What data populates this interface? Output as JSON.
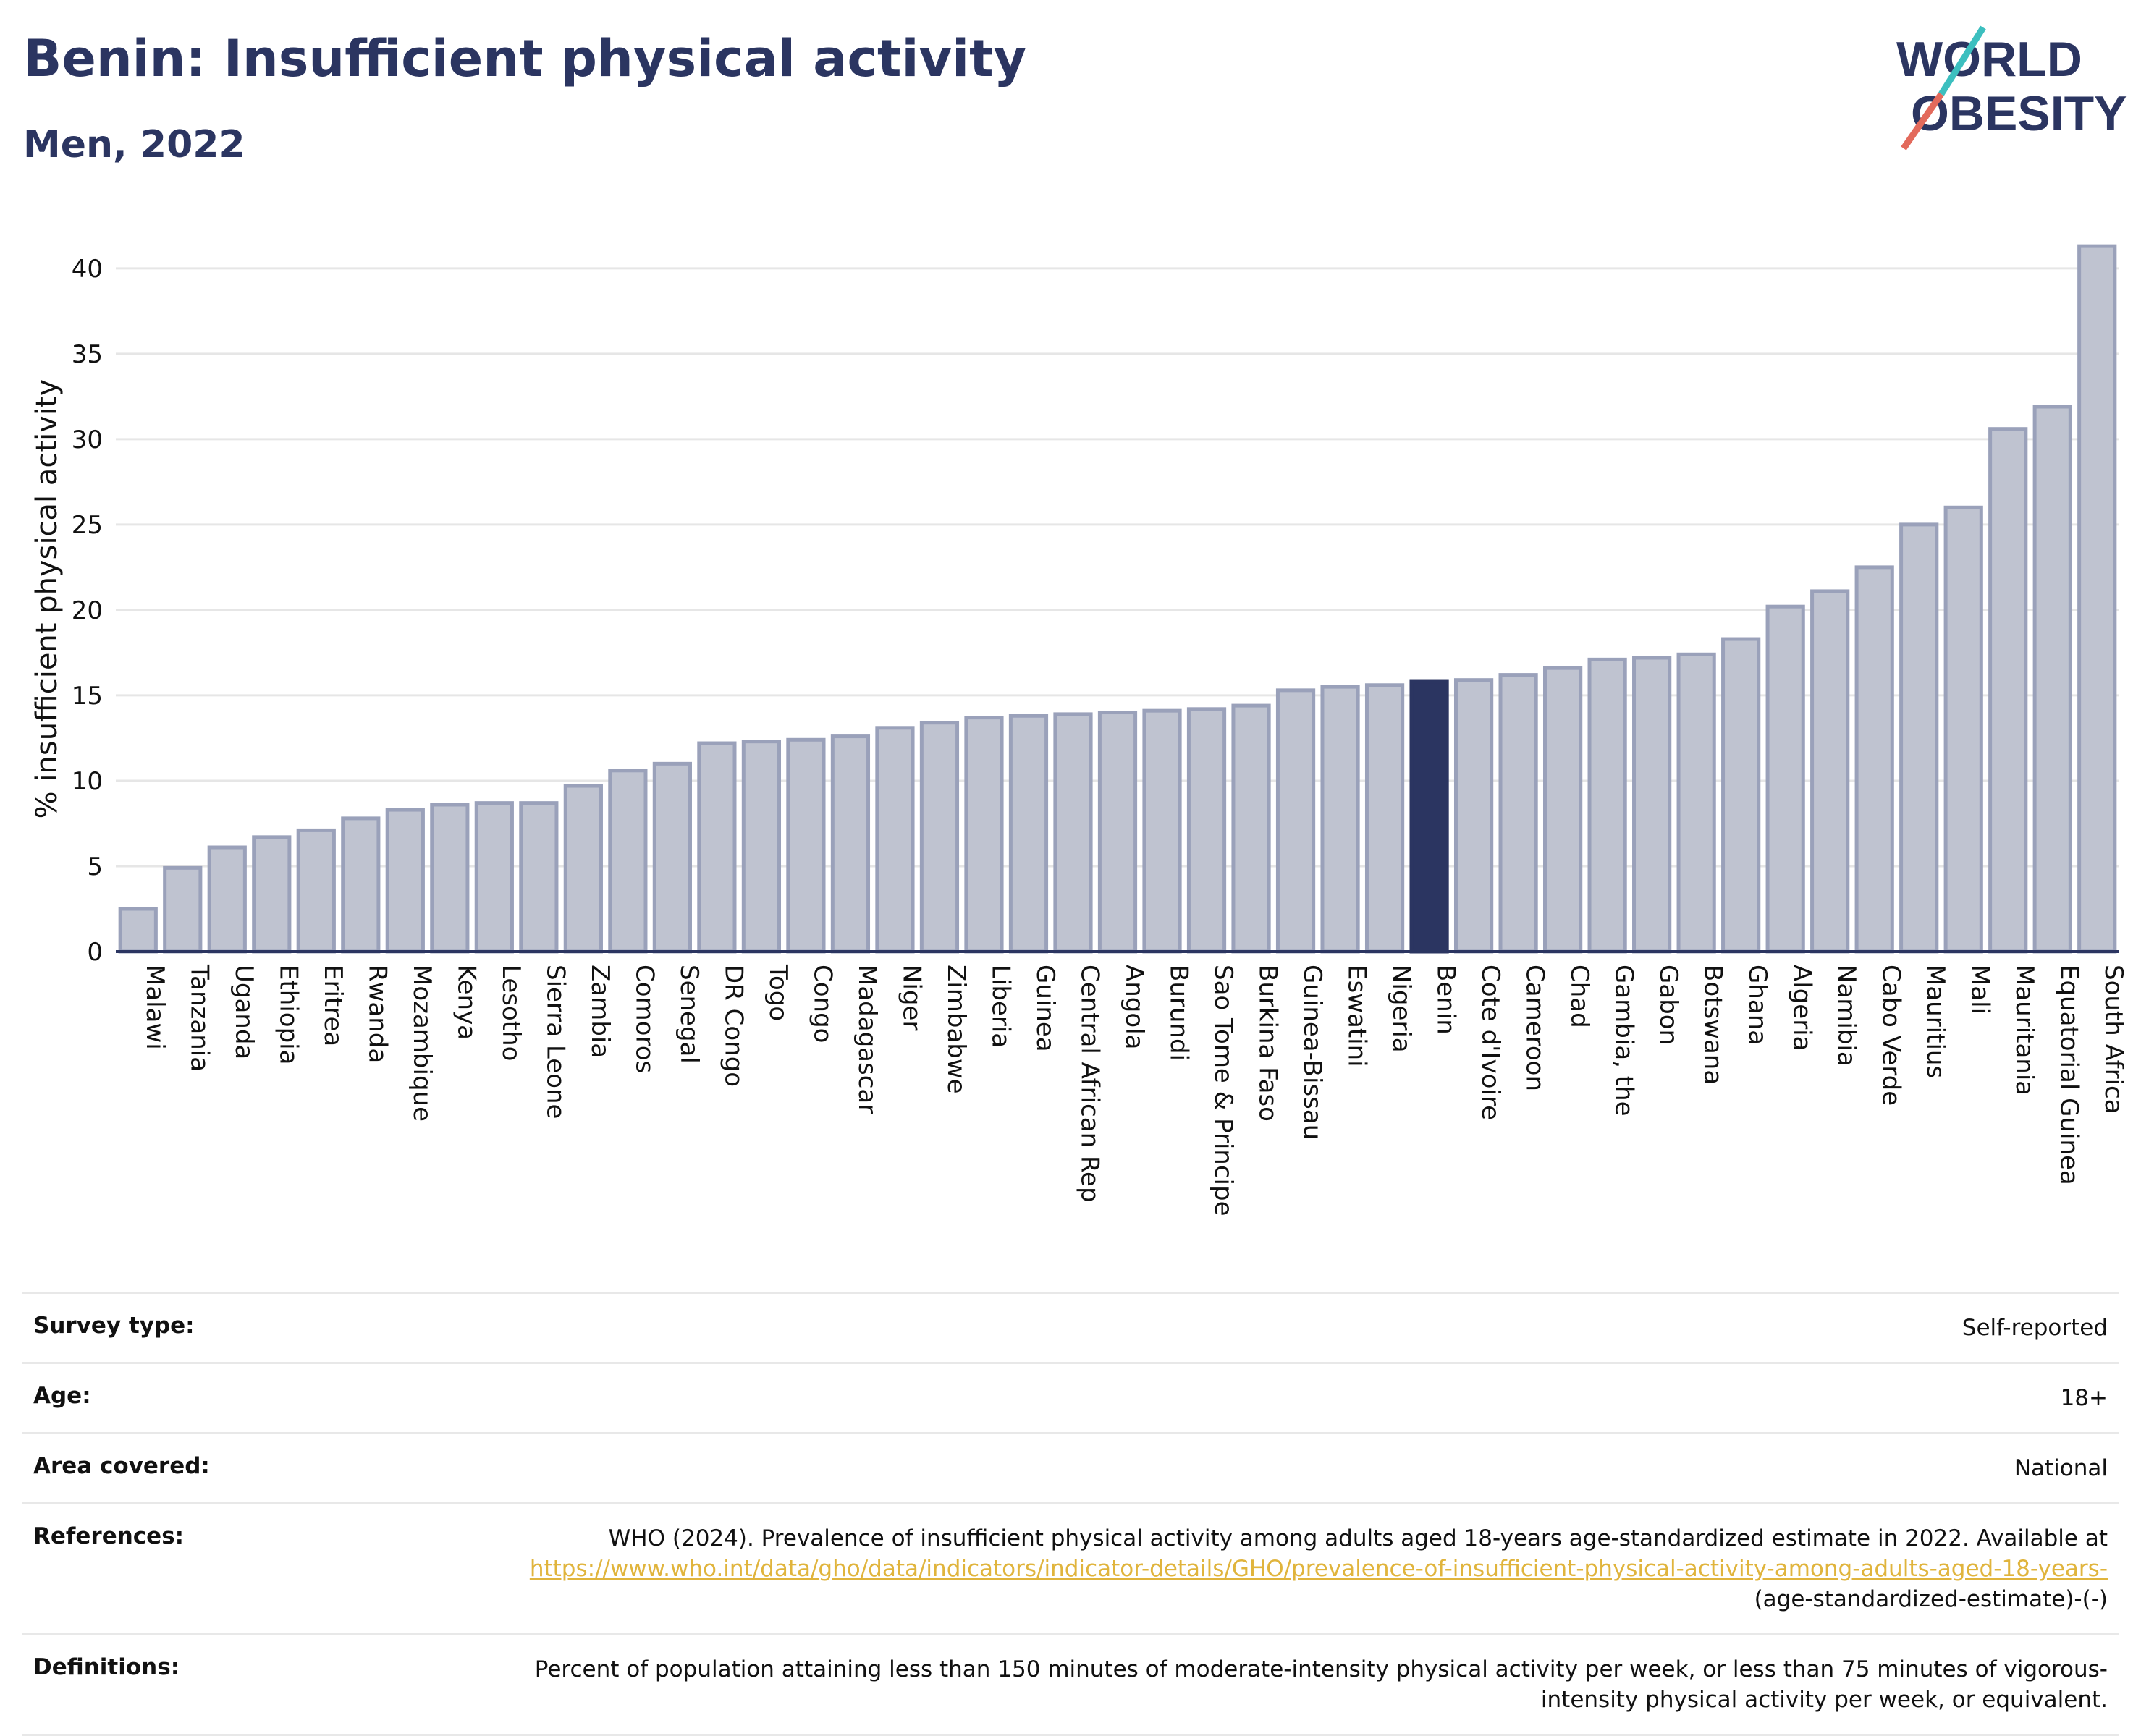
{
  "header": {
    "title": "Benin: Insufficient physical activity",
    "subtitle": "Men, 2022"
  },
  "logo": {
    "line1": "WORLD",
    "line2": "OBESITY"
  },
  "colors": {
    "title": "#2b3561",
    "bar": "#bfc3d0",
    "bar_border": "#9aa1ba",
    "highlight": "#2b3561",
    "link": "#e0b43c"
  },
  "chart_data": {
    "type": "bar",
    "ylabel": "% insufficient physical activity",
    "xlabel": "",
    "ylim": [
      0,
      43
    ],
    "yticks": [
      0,
      5,
      10,
      15,
      20,
      25,
      30,
      35,
      40
    ],
    "grid": true,
    "highlight": "Benin",
    "categories": [
      "Malawi",
      "Tanzania",
      "Uganda",
      "Ethiopia",
      "Eritrea",
      "Rwanda",
      "Mozambique",
      "Kenya",
      "Lesotho",
      "Sierra Leone",
      "Zambia",
      "Comoros",
      "Senegal",
      "DR Congo",
      "Togo",
      "Congo",
      "Madagascar",
      "Niger",
      "Zimbabwe",
      "Liberia",
      "Guinea",
      "Central African Rep",
      "Angola",
      "Burundi",
      "Sao Tome & Principe",
      "Burkina Faso",
      "Guinea-Bissau",
      "Eswatini",
      "Nigeria",
      "Benin",
      "Cote d'Ivoire",
      "Cameroon",
      "Chad",
      "Gambia, the",
      "Gabon",
      "Botswana",
      "Ghana",
      "Algeria",
      "Namibia",
      "Cabo Verde",
      "Mauritius",
      "Mali",
      "Mauritania",
      "Equatorial Guinea",
      "South Africa"
    ],
    "values": [
      2.5,
      4.9,
      6.1,
      6.7,
      7.1,
      7.8,
      8.3,
      8.6,
      8.7,
      8.7,
      9.7,
      10.6,
      11.0,
      12.2,
      12.3,
      12.4,
      12.6,
      13.1,
      13.4,
      13.7,
      13.8,
      13.9,
      14.0,
      14.1,
      14.2,
      14.4,
      15.3,
      15.5,
      15.6,
      15.8,
      15.9,
      16.2,
      16.6,
      17.1,
      17.2,
      17.4,
      18.3,
      20.2,
      21.1,
      22.5,
      25.0,
      26.0,
      30.6,
      31.9,
      41.3
    ]
  },
  "metadata": {
    "survey_type_label": "Survey type:",
    "survey_type_value": "Self-reported",
    "age_label": "Age:",
    "age_value": "18+",
    "area_label": "Area covered:",
    "area_value": "National",
    "references_label": "References:",
    "references_text": "WHO (2024). Prevalence of insufficient physical activity among adults aged 18-years age-standardized estimate in 2022. Available at",
    "references_link": "https://www.who.int/data/gho/data/indicators/indicator-details/GHO/prevalence-of-insufficient-physical-activity-among-adults-aged-18-years-",
    "references_suffix": "(age-standardized-estimate)-(-)",
    "definitions_label": "Definitions:",
    "definitions_text": "Percent of population attaining less than 150 minutes of moderate-intensity physical activity per week, or less than 75 minutes of vigorous-intensity physical activity per week, or equivalent."
  }
}
